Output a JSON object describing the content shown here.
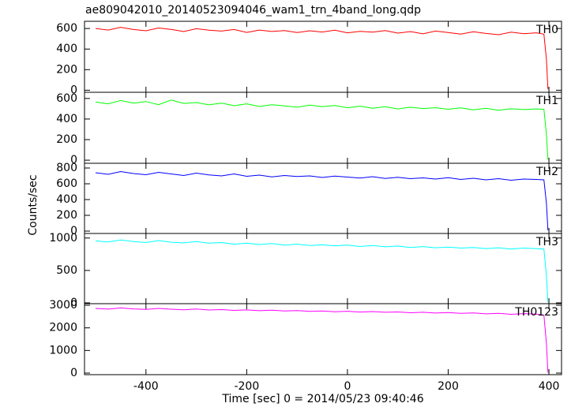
{
  "figure": {
    "title": "ae809042010_20140523094046_wam1_trn_4band_long.qdp",
    "x_label": "Time [sec] 0 = 2014/05/23 09:40:46",
    "y_label": "Counts/sec"
  },
  "chart_data": [
    {
      "type": "line",
      "xlim": [
        -522,
        425
      ],
      "xticks": [
        -400,
        -200,
        0,
        200,
        400
      ],
      "ylim": [
        -20,
        670
      ],
      "yticks": [
        0,
        200,
        400,
        600
      ],
      "x": [
        -500,
        -475,
        -450,
        -425,
        -400,
        -375,
        -350,
        -325,
        -300,
        -275,
        -250,
        -225,
        -200,
        -175,
        -150,
        -125,
        -100,
        -75,
        -50,
        -25,
        0,
        25,
        50,
        75,
        100,
        125,
        150,
        175,
        200,
        225,
        250,
        275,
        300,
        325,
        350,
        375,
        390,
        395,
        398
      ],
      "series": [
        {
          "name": "TH0",
          "color": "#ff0000",
          "values": [
            600,
            585,
            612,
            590,
            578,
            605,
            592,
            570,
            598,
            583,
            575,
            590,
            562,
            585,
            571,
            580,
            560,
            578,
            566,
            584,
            558,
            572,
            565,
            580,
            555,
            570,
            548,
            575,
            560,
            545,
            568,
            552,
            540,
            565,
            550,
            558,
            545,
            300,
            10
          ]
        }
      ]
    },
    {
      "type": "line",
      "xlim": [
        -522,
        425
      ],
      "xticks": [
        -400,
        -200,
        0,
        200,
        400
      ],
      "ylim": [
        -30,
        660
      ],
      "yticks": [
        0,
        200,
        400,
        600
      ],
      "x": [
        -500,
        -475,
        -450,
        -425,
        -400,
        -375,
        -350,
        -325,
        -300,
        -275,
        -250,
        -225,
        -200,
        -175,
        -150,
        -125,
        -100,
        -75,
        -50,
        -25,
        0,
        25,
        50,
        75,
        100,
        125,
        150,
        175,
        200,
        225,
        250,
        275,
        300,
        325,
        350,
        375,
        390,
        395,
        398
      ],
      "series": [
        {
          "name": "TH1",
          "color": "#00ff00",
          "values": [
            565,
            548,
            580,
            555,
            570,
            540,
            585,
            552,
            560,
            538,
            555,
            530,
            548,
            522,
            540,
            528,
            515,
            535,
            520,
            532,
            510,
            525,
            505,
            520,
            498,
            515,
            502,
            510,
            495,
            508,
            490,
            505,
            485,
            500,
            492,
            498,
            495,
            250,
            5
          ]
        }
      ]
    },
    {
      "type": "line",
      "xlim": [
        -522,
        425
      ],
      "xticks": [
        -400,
        -200,
        0,
        200,
        400
      ],
      "ylim": [
        -30,
        860
      ],
      "yticks": [
        0,
        200,
        400,
        600,
        800
      ],
      "x": [
        -500,
        -475,
        -450,
        -425,
        -400,
        -375,
        -350,
        -325,
        -300,
        -275,
        -250,
        -225,
        -200,
        -175,
        -150,
        -125,
        -100,
        -75,
        -50,
        -25,
        0,
        25,
        50,
        75,
        100,
        125,
        150,
        175,
        200,
        225,
        250,
        275,
        300,
        325,
        350,
        375,
        390,
        395,
        398
      ],
      "series": [
        {
          "name": "TH2",
          "color": "#0000ff",
          "values": [
            740,
            720,
            755,
            730,
            715,
            745,
            725,
            705,
            735,
            712,
            700,
            725,
            695,
            710,
            688,
            705,
            692,
            700,
            680,
            698,
            685,
            672,
            690,
            668,
            682,
            665,
            675,
            660,
            678,
            655,
            670,
            650,
            665,
            645,
            660,
            655,
            650,
            350,
            10
          ]
        }
      ]
    },
    {
      "type": "line",
      "xlim": [
        -522,
        425
      ],
      "xticks": [
        -400,
        -200,
        0,
        200,
        400
      ],
      "ylim": [
        -12,
        1070
      ],
      "yticks": [
        0,
        500,
        1000
      ],
      "x": [
        -500,
        -475,
        -450,
        -425,
        -400,
        -375,
        -350,
        -325,
        -300,
        -275,
        -250,
        -225,
        -200,
        -175,
        -150,
        -125,
        -100,
        -75,
        -50,
        -25,
        0,
        25,
        50,
        75,
        100,
        125,
        150,
        175,
        200,
        225,
        250,
        275,
        300,
        325,
        350,
        375,
        390,
        395,
        398
      ],
      "series": [
        {
          "name": "TH3",
          "color": "#00ffff",
          "values": [
            955,
            940,
            970,
            945,
            930,
            960,
            935,
            925,
            945,
            920,
            930,
            905,
            920,
            900,
            915,
            890,
            905,
            885,
            895,
            880,
            890,
            870,
            885,
            865,
            875,
            855,
            868,
            850,
            860,
            845,
            855,
            835,
            850,
            830,
            845,
            835,
            830,
            420,
            10
          ]
        }
      ]
    },
    {
      "type": "line",
      "xlim": [
        -522,
        425
      ],
      "xticks": [
        -400,
        -200,
        0,
        200,
        400
      ],
      "ylim": [
        -70,
        3070
      ],
      "yticks": [
        0,
        1000,
        2000,
        3000
      ],
      "x": [
        -500,
        -475,
        -450,
        -425,
        -400,
        -375,
        -350,
        -325,
        -300,
        -275,
        -250,
        -225,
        -200,
        -175,
        -150,
        -125,
        -100,
        -75,
        -50,
        -25,
        0,
        25,
        50,
        75,
        100,
        125,
        150,
        175,
        200,
        225,
        250,
        275,
        300,
        325,
        350,
        375,
        390,
        395,
        398
      ],
      "series": [
        {
          "name": "TH0123",
          "color": "#ff00ff",
          "values": [
            2860,
            2830,
            2880,
            2840,
            2815,
            2860,
            2825,
            2800,
            2835,
            2790,
            2810,
            2775,
            2795,
            2760,
            2780,
            2745,
            2765,
            2730,
            2750,
            2715,
            2735,
            2700,
            2720,
            2690,
            2705,
            2670,
            2690,
            2655,
            2675,
            2640,
            2660,
            2620,
            2645,
            2600,
            2630,
            2610,
            2560,
            1300,
            20
          ]
        }
      ]
    }
  ]
}
